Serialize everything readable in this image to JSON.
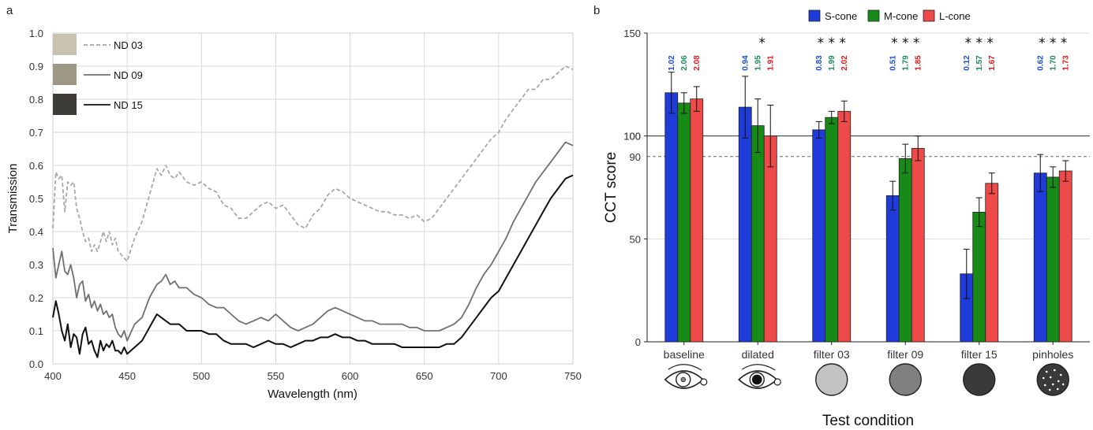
{
  "panel_labels": [
    "a",
    "b"
  ],
  "chart_data": [
    {
      "type": "line",
      "xlabel": "Wavelength (nm)",
      "ylabel": "Transmission",
      "xlim": [
        400,
        750
      ],
      "ylim": [
        0,
        1.0
      ],
      "xticks": [
        400,
        450,
        500,
        550,
        600,
        650,
        700,
        750
      ],
      "yticks": [
        0.0,
        0.1,
        0.2,
        0.3,
        0.4,
        0.5,
        0.6,
        0.7,
        0.8,
        0.9,
        1.0
      ],
      "grid": true,
      "legend_position": "top-left",
      "swatch_colors": [
        "#c9c2ae",
        "#9d9785",
        "#3d3b36"
      ],
      "series": [
        {
          "name": "ND 03",
          "color": "#a8a8a8",
          "dash": "dashed",
          "x": [
            400,
            402,
            404,
            406,
            408,
            410,
            412,
            414,
            416,
            418,
            420,
            422,
            424,
            426,
            428,
            430,
            432,
            434,
            436,
            438,
            440,
            442,
            444,
            446,
            448,
            450,
            455,
            460,
            465,
            470,
            473,
            476,
            479,
            482,
            485,
            490,
            495,
            500,
            505,
            510,
            515,
            520,
            525,
            530,
            535,
            540,
            545,
            550,
            555,
            560,
            565,
            570,
            575,
            580,
            585,
            590,
            595,
            600,
            605,
            610,
            615,
            620,
            625,
            630,
            635,
            640,
            645,
            650,
            655,
            660,
            665,
            670,
            675,
            680,
            685,
            690,
            695,
            700,
            705,
            710,
            715,
            720,
            725,
            730,
            735,
            740,
            745,
            750
          ],
          "y": [
            0.41,
            0.58,
            0.56,
            0.57,
            0.46,
            0.55,
            0.54,
            0.55,
            0.47,
            0.44,
            0.4,
            0.37,
            0.38,
            0.34,
            0.36,
            0.34,
            0.37,
            0.4,
            0.37,
            0.4,
            0.36,
            0.38,
            0.34,
            0.33,
            0.32,
            0.31,
            0.38,
            0.43,
            0.51,
            0.59,
            0.57,
            0.6,
            0.57,
            0.56,
            0.58,
            0.55,
            0.54,
            0.55,
            0.53,
            0.52,
            0.48,
            0.47,
            0.44,
            0.44,
            0.46,
            0.48,
            0.49,
            0.47,
            0.48,
            0.45,
            0.42,
            0.41,
            0.45,
            0.47,
            0.51,
            0.53,
            0.52,
            0.5,
            0.49,
            0.48,
            0.47,
            0.46,
            0.46,
            0.45,
            0.45,
            0.44,
            0.45,
            0.43,
            0.44,
            0.47,
            0.5,
            0.53,
            0.56,
            0.59,
            0.62,
            0.65,
            0.68,
            0.7,
            0.74,
            0.77,
            0.8,
            0.83,
            0.83,
            0.86,
            0.86,
            0.88,
            0.9,
            0.89
          ]
        },
        {
          "name": "ND 09",
          "color": "#707070",
          "dash": "solid",
          "x": [
            400,
            402,
            404,
            406,
            408,
            410,
            412,
            414,
            416,
            418,
            420,
            422,
            424,
            426,
            428,
            430,
            432,
            434,
            436,
            438,
            440,
            442,
            444,
            446,
            448,
            450,
            455,
            460,
            465,
            470,
            473,
            476,
            479,
            482,
            485,
            490,
            495,
            500,
            505,
            510,
            515,
            520,
            525,
            530,
            535,
            540,
            545,
            550,
            555,
            560,
            565,
            570,
            575,
            580,
            585,
            590,
            595,
            600,
            605,
            610,
            615,
            620,
            625,
            630,
            635,
            640,
            645,
            650,
            655,
            660,
            665,
            670,
            675,
            680,
            685,
            690,
            695,
            700,
            705,
            710,
            715,
            720,
            725,
            730,
            735,
            740,
            745,
            750
          ],
          "y": [
            0.35,
            0.26,
            0.3,
            0.34,
            0.28,
            0.27,
            0.3,
            0.26,
            0.2,
            0.24,
            0.25,
            0.19,
            0.21,
            0.17,
            0.19,
            0.16,
            0.18,
            0.15,
            0.16,
            0.14,
            0.15,
            0.11,
            0.09,
            0.08,
            0.1,
            0.07,
            0.12,
            0.14,
            0.2,
            0.24,
            0.25,
            0.27,
            0.24,
            0.25,
            0.23,
            0.23,
            0.21,
            0.2,
            0.18,
            0.17,
            0.17,
            0.15,
            0.13,
            0.12,
            0.13,
            0.14,
            0.13,
            0.15,
            0.13,
            0.11,
            0.1,
            0.11,
            0.12,
            0.14,
            0.16,
            0.17,
            0.16,
            0.15,
            0.14,
            0.13,
            0.13,
            0.12,
            0.12,
            0.12,
            0.12,
            0.11,
            0.11,
            0.1,
            0.1,
            0.1,
            0.11,
            0.12,
            0.14,
            0.18,
            0.23,
            0.27,
            0.3,
            0.34,
            0.38,
            0.43,
            0.47,
            0.51,
            0.55,
            0.58,
            0.61,
            0.64,
            0.67,
            0.66
          ]
        },
        {
          "name": "ND 15",
          "color": "#111111",
          "dash": "solid",
          "x": [
            400,
            402,
            404,
            406,
            408,
            410,
            412,
            414,
            416,
            418,
            420,
            422,
            424,
            426,
            428,
            430,
            432,
            434,
            436,
            438,
            440,
            442,
            444,
            446,
            448,
            450,
            455,
            460,
            465,
            470,
            473,
            476,
            479,
            482,
            485,
            490,
            495,
            500,
            505,
            510,
            515,
            520,
            525,
            530,
            535,
            540,
            545,
            550,
            555,
            560,
            565,
            570,
            575,
            580,
            585,
            590,
            595,
            600,
            605,
            610,
            615,
            620,
            625,
            630,
            635,
            640,
            645,
            650,
            655,
            660,
            665,
            670,
            675,
            680,
            685,
            690,
            695,
            700,
            705,
            710,
            715,
            720,
            725,
            730,
            735,
            740,
            745,
            750
          ],
          "y": [
            0.14,
            0.19,
            0.15,
            0.1,
            0.07,
            0.12,
            0.05,
            0.09,
            0.08,
            0.03,
            0.09,
            0.11,
            0.06,
            0.07,
            0.04,
            0.02,
            0.07,
            0.04,
            0.06,
            0.05,
            0.07,
            0.04,
            0.04,
            0.03,
            0.05,
            0.03,
            0.05,
            0.07,
            0.11,
            0.15,
            0.14,
            0.13,
            0.12,
            0.12,
            0.12,
            0.1,
            0.1,
            0.1,
            0.09,
            0.09,
            0.07,
            0.06,
            0.06,
            0.06,
            0.05,
            0.06,
            0.07,
            0.06,
            0.06,
            0.05,
            0.06,
            0.07,
            0.07,
            0.08,
            0.08,
            0.09,
            0.08,
            0.08,
            0.07,
            0.07,
            0.06,
            0.06,
            0.06,
            0.06,
            0.05,
            0.05,
            0.05,
            0.05,
            0.05,
            0.05,
            0.06,
            0.06,
            0.08,
            0.11,
            0.14,
            0.17,
            0.2,
            0.22,
            0.26,
            0.3,
            0.34,
            0.38,
            0.42,
            0.46,
            0.5,
            0.53,
            0.56,
            0.57
          ]
        }
      ]
    },
    {
      "type": "bar",
      "xlabel": "Test condition",
      "ylabel": "CCT score",
      "ylim": [
        0,
        150
      ],
      "yticks": [
        0,
        50,
        100,
        150
      ],
      "reference_lines": [
        {
          "y": 100,
          "style": "solid"
        },
        {
          "y": 90,
          "style": "dashed"
        }
      ],
      "grid": "horizontal",
      "legend_position": "top-center",
      "categories": [
        "baseline",
        "dilated",
        "filter 03",
        "filter 09",
        "filter 15",
        "pinholes"
      ],
      "category_icons": [
        "eye-normal-icon",
        "eye-dilated-icon",
        "light-grey-disc-icon",
        "mid-grey-disc-icon",
        "dark-grey-disc-icon",
        "pinhole-disc-icon"
      ],
      "significance": [
        "",
        "  *",
        "* * *",
        "* * *",
        "* * *",
        "* * *"
      ],
      "series": [
        {
          "name": "S-cone",
          "color": "#1f3bd9",
          "values": [
            121,
            114,
            103,
            71,
            33,
            82
          ],
          "errors": [
            10,
            15,
            4,
            7,
            12,
            9
          ],
          "ratios": [
            "1.02",
            "0.94",
            "0.83",
            "0.51",
            "0.12",
            "0.62"
          ],
          "ratio_color": "#1a4ed6"
        },
        {
          "name": "M-cone",
          "color": "#178a17",
          "values": [
            116,
            105,
            109,
            89,
            63,
            80
          ],
          "errors": [
            5,
            13,
            3,
            7,
            7,
            5
          ],
          "ratios": [
            "2.06",
            "1.95",
            "1.99",
            "1.79",
            "1.57",
            "1.70"
          ],
          "ratio_color": "#1a8a5a"
        },
        {
          "name": "L-cone",
          "color": "#ef4a4a",
          "values": [
            118,
            100,
            112,
            94,
            77,
            83
          ],
          "errors": [
            6,
            15,
            5,
            6,
            5,
            5
          ],
          "ratios": [
            "2.08",
            "1.91",
            "2.02",
            "1.85",
            "1.67",
            "1.73"
          ],
          "ratio_color": "#e5191b"
        }
      ]
    }
  ]
}
